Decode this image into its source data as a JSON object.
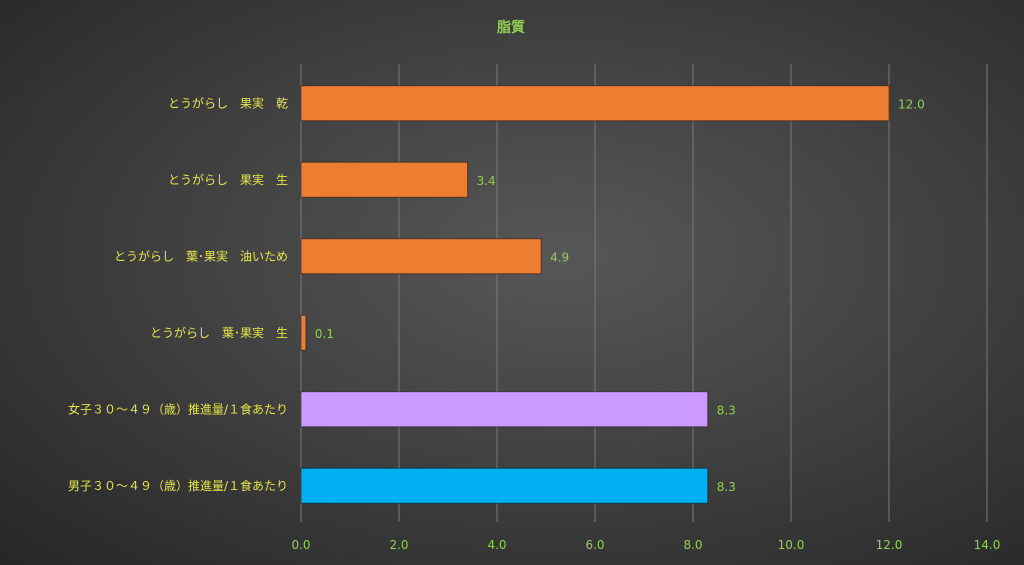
{
  "chart_data": {
    "type": "bar",
    "orientation": "horizontal",
    "title": "脂質",
    "xlabel": "",
    "ylabel": "",
    "xlim": [
      0,
      14
    ],
    "ticks": [
      "0.0",
      "2.0",
      "4.0",
      "6.0",
      "8.0",
      "10.0",
      "12.0",
      "14.0"
    ],
    "grid": true,
    "legend": "none",
    "categories": [
      "とうがらし　果実　乾",
      "とうがらし　果実　生",
      "とうがらし　葉･果実　油いため",
      "とうがらし　葉･果実　生",
      "女子３０～４９（歳）推進量/１食あたり",
      "男子３０～４９（歳）推進量/１食あたり"
    ],
    "values": [
      12.0,
      3.4,
      4.9,
      0.1,
      8.3,
      8.3
    ],
    "value_labels": [
      "12.0",
      "3.4",
      "4.9",
      "0.1",
      "8.3",
      "8.3"
    ],
    "bar_colors": [
      "#ed7d31",
      "#ed7d31",
      "#ed7d31",
      "#ed7d31",
      "#cc99ff",
      "#00b0f0"
    ]
  }
}
